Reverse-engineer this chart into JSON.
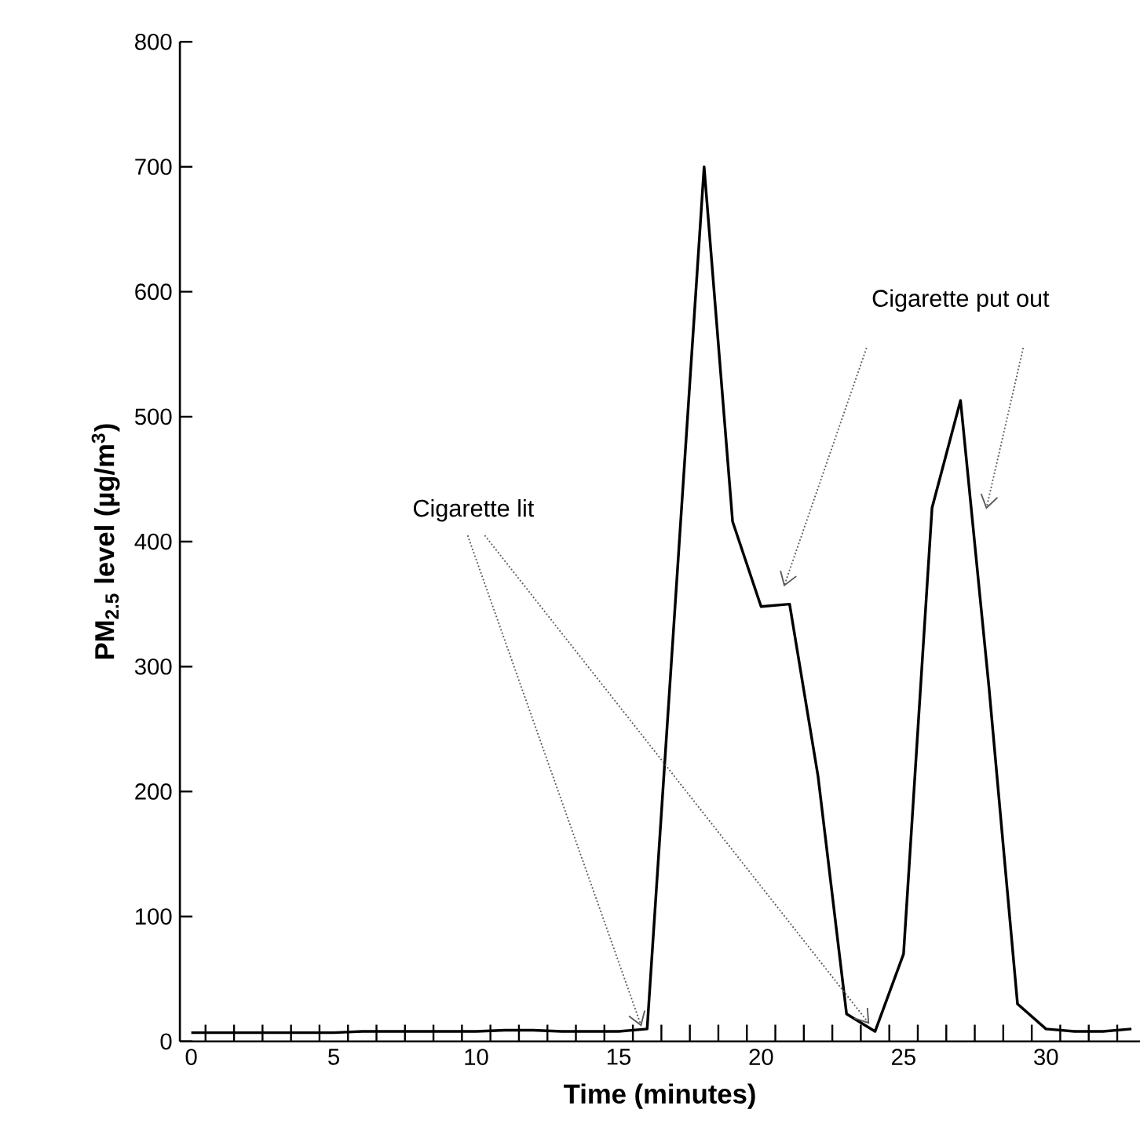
{
  "chart_data": {
    "type": "line",
    "xlabel": "Time (minutes)",
    "ylabel": "**PM$_{2.5}$ level (µg/m$^{3}$)**",
    "x": [
      0,
      1,
      2,
      3,
      4,
      5,
      6,
      7,
      8,
      9,
      10,
      11,
      12,
      13,
      14,
      15,
      16,
      17,
      18,
      19,
      20,
      21,
      22,
      23,
      24,
      25,
      26,
      27,
      28,
      29,
      30,
      31,
      32,
      33
    ],
    "series": [
      {
        "color": "#000000",
        "values": [
          7,
          7,
          7,
          7,
          7,
          7,
          8,
          8,
          8,
          8,
          8,
          9,
          9,
          8,
          8,
          8,
          10,
          355,
          700,
          416,
          348,
          350,
          212,
          22,
          8,
          70,
          427,
          513,
          283,
          30,
          10,
          8,
          8,
          10
        ]
      }
    ],
    "xlim": [
      -0.4,
      33.3
    ],
    "ylim": [
      0,
      800
    ],
    "xticks": [
      0,
      5,
      10,
      15,
      20,
      25,
      30,
      {
        "value": 0.5,
        "label": null
      },
      {
        "value": 1.5,
        "label": null
      },
      {
        "value": 2.5,
        "label": null
      },
      {
        "value": 3.5,
        "label": null
      },
      {
        "value": 4.5,
        "label": null
      },
      {
        "value": 5.5,
        "label": null
      },
      {
        "value": 6.5,
        "label": null
      },
      {
        "value": 7.5,
        "label": null
      },
      {
        "value": 8.5,
        "label": null
      },
      {
        "value": 9.5,
        "label": null
      },
      {
        "value": 10.5,
        "label": null
      },
      {
        "value": 11.5,
        "label": null
      },
      {
        "value": 12.5,
        "label": null
      },
      {
        "value": 13.5,
        "label": null
      },
      {
        "value": 14.5,
        "label": null
      },
      {
        "value": 15.5,
        "label": null
      },
      {
        "value": 16.5,
        "label": null
      },
      {
        "value": 17.5,
        "label": null
      },
      {
        "value": 18.5,
        "label": null
      },
      {
        "value": 19.5,
        "label": null
      },
      {
        "value": 20.5,
        "label": null
      },
      {
        "value": 21.5,
        "label": null
      },
      {
        "value": 22.5,
        "label": null
      },
      {
        "value": 23.5,
        "label": null
      },
      {
        "value": 24.5,
        "label": null
      },
      {
        "value": 25.5,
        "label": null
      },
      {
        "value": 26.5,
        "label": null
      },
      {
        "value": 27.5,
        "label": null
      },
      {
        "value": 28.5,
        "label": null
      },
      {
        "value": 29.5,
        "label": null
      },
      {
        "value": 30.5,
        "label": null
      },
      {
        "value": 31.5,
        "label": null
      },
      {
        "value": 32.5,
        "label": null
      }
    ],
    "yticks": [
      0,
      100,
      200,
      300,
      400,
      500,
      600,
      700,
      800
    ],
    "annotations": [
      "Cigarette lit",
      "Cigarette put out"
    ],
    "marker": "none",
    "line_style": "solid"
  }
}
